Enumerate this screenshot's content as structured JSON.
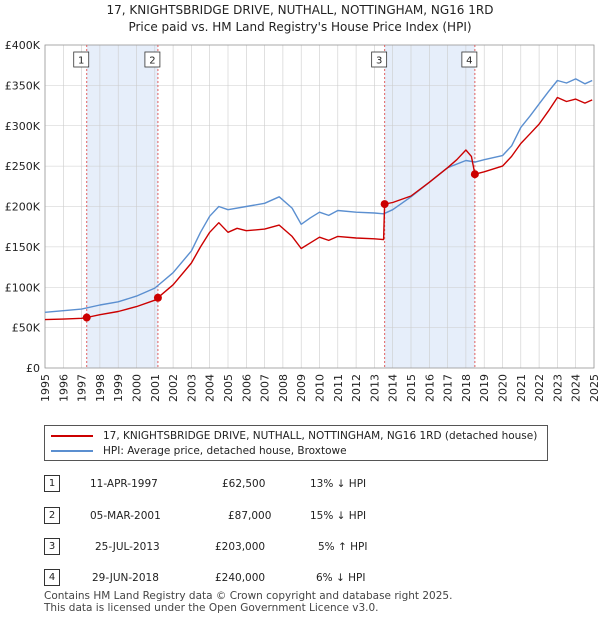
{
  "title": "17, KNIGHTSBRIDGE DRIVE, NUTHALL, NOTTINGHAM, NG16 1RD",
  "subtitle": "Price paid vs. HM Land Registry's House Price Index (HPI)",
  "colors": {
    "property": "#cc0000",
    "hpi": "#5b8fd0",
    "shade": "#e6eefa",
    "vline": "#e06060",
    "grid": "#cccccc"
  },
  "chart_data": {
    "type": "line",
    "xlim": [
      1995,
      2025
    ],
    "ylim": [
      0,
      400000
    ],
    "x_ticks": [
      "1995",
      "1996",
      "1997",
      "1998",
      "1999",
      "2000",
      "2001",
      "2002",
      "2003",
      "2004",
      "2005",
      "2006",
      "2007",
      "2008",
      "2009",
      "2010",
      "2011",
      "2012",
      "2013",
      "2014",
      "2015",
      "2016",
      "2017",
      "2018",
      "2019",
      "2020",
      "2021",
      "2022",
      "2023",
      "2024",
      "2025"
    ],
    "y_ticks": [
      {
        "value": 0,
        "label": "£0"
      },
      {
        "value": 50000,
        "label": "£50K"
      },
      {
        "value": 100000,
        "label": "£100K"
      },
      {
        "value": 150000,
        "label": "£150K"
      },
      {
        "value": 200000,
        "label": "£200K"
      },
      {
        "value": 250000,
        "label": "£250K"
      },
      {
        "value": 300000,
        "label": "£300K"
      },
      {
        "value": 350000,
        "label": "£350K"
      },
      {
        "value": 400000,
        "label": "£400K"
      }
    ],
    "shaded_ranges": [
      [
        1997.28,
        2001.17
      ],
      [
        2013.56,
        2018.49
      ]
    ],
    "series": [
      {
        "name": "17, KNIGHTSBRIDGE DRIVE, NUTHALL, NOTTINGHAM, NG16 1RD (detached house)",
        "color": "#cc0000",
        "points": [
          [
            1995.0,
            60000
          ],
          [
            1996.0,
            60500
          ],
          [
            1997.0,
            61500
          ],
          [
            1997.28,
            62500
          ],
          [
            1998.0,
            66000
          ],
          [
            1999.0,
            70000
          ],
          [
            2000.0,
            76000
          ],
          [
            2001.0,
            84000
          ],
          [
            2001.17,
            87000
          ],
          [
            2002.0,
            103000
          ],
          [
            2003.0,
            130000
          ],
          [
            2003.5,
            150000
          ],
          [
            2004.0,
            168000
          ],
          [
            2004.5,
            180000
          ],
          [
            2005.0,
            168000
          ],
          [
            2005.5,
            173000
          ],
          [
            2006.0,
            170000
          ],
          [
            2007.0,
            172000
          ],
          [
            2007.8,
            177000
          ],
          [
            2008.5,
            163000
          ],
          [
            2009.0,
            148000
          ],
          [
            2009.5,
            155000
          ],
          [
            2010.0,
            162000
          ],
          [
            2010.5,
            158000
          ],
          [
            2011.0,
            163000
          ],
          [
            2012.0,
            161000
          ],
          [
            2013.0,
            160000
          ],
          [
            2013.5,
            159000
          ],
          [
            2013.56,
            203000
          ],
          [
            2014.0,
            205000
          ],
          [
            2015.0,
            213000
          ],
          [
            2016.0,
            230000
          ],
          [
            2017.0,
            248000
          ],
          [
            2017.5,
            258000
          ],
          [
            2018.0,
            270000
          ],
          [
            2018.3,
            262000
          ],
          [
            2018.49,
            240000
          ],
          [
            2019.0,
            243000
          ],
          [
            2020.0,
            250000
          ],
          [
            2020.5,
            262000
          ],
          [
            2021.0,
            278000
          ],
          [
            2021.5,
            290000
          ],
          [
            2022.0,
            302000
          ],
          [
            2022.5,
            318000
          ],
          [
            2023.0,
            335000
          ],
          [
            2023.5,
            330000
          ],
          [
            2024.0,
            333000
          ],
          [
            2024.5,
            328000
          ],
          [
            2024.9,
            332000
          ]
        ]
      },
      {
        "name": "HPI: Average price, detached house, Broxtowe",
        "color": "#5b8fd0",
        "points": [
          [
            1995.0,
            69000
          ],
          [
            1996.0,
            71000
          ],
          [
            1997.0,
            73000
          ],
          [
            1998.0,
            78000
          ],
          [
            1999.0,
            82000
          ],
          [
            2000.0,
            89000
          ],
          [
            2001.0,
            99000
          ],
          [
            2002.0,
            118000
          ],
          [
            2003.0,
            145000
          ],
          [
            2003.5,
            168000
          ],
          [
            2004.0,
            188000
          ],
          [
            2004.5,
            200000
          ],
          [
            2005.0,
            196000
          ],
          [
            2006.0,
            200000
          ],
          [
            2007.0,
            204000
          ],
          [
            2007.8,
            212000
          ],
          [
            2008.5,
            198000
          ],
          [
            2009.0,
            178000
          ],
          [
            2009.5,
            186000
          ],
          [
            2010.0,
            193000
          ],
          [
            2010.5,
            189000
          ],
          [
            2011.0,
            195000
          ],
          [
            2012.0,
            193000
          ],
          [
            2013.0,
            192000
          ],
          [
            2013.5,
            191000
          ],
          [
            2014.0,
            196000
          ],
          [
            2015.0,
            212000
          ],
          [
            2016.0,
            230000
          ],
          [
            2017.0,
            248000
          ],
          [
            2018.0,
            257000
          ],
          [
            2018.5,
            255000
          ],
          [
            2019.0,
            258000
          ],
          [
            2020.0,
            263000
          ],
          [
            2020.5,
            275000
          ],
          [
            2021.0,
            298000
          ],
          [
            2021.5,
            312000
          ],
          [
            2022.0,
            327000
          ],
          [
            2022.5,
            342000
          ],
          [
            2023.0,
            356000
          ],
          [
            2023.5,
            353000
          ],
          [
            2024.0,
            358000
          ],
          [
            2024.5,
            352000
          ],
          [
            2024.9,
            356000
          ]
        ]
      }
    ],
    "sale_points": [
      {
        "label": "1",
        "x": 1997.28,
        "y": 62500
      },
      {
        "label": "2",
        "x": 2001.17,
        "y": 87000
      },
      {
        "label": "3",
        "x": 2013.56,
        "y": 203000
      },
      {
        "label": "4",
        "x": 2018.49,
        "y": 240000
      }
    ]
  },
  "legend": {
    "property": "17, KNIGHTSBRIDGE DRIVE, NUTHALL, NOTTINGHAM, NG16 1RD (detached house)",
    "hpi": "HPI: Average price, detached house, Broxtowe"
  },
  "sales": [
    {
      "num": "1",
      "date": "11-APR-1997",
      "price": "£62,500",
      "hpi": "13% ↓ HPI"
    },
    {
      "num": "2",
      "date": "05-MAR-2001",
      "price": "£87,000",
      "hpi": "15% ↓ HPI"
    },
    {
      "num": "3",
      "date": "25-JUL-2013",
      "price": "£203,000",
      "hpi": "5% ↑ HPI"
    },
    {
      "num": "4",
      "date": "29-JUN-2018",
      "price": "£240,000",
      "hpi": "6% ↓ HPI"
    }
  ],
  "footer": {
    "line1": "Contains HM Land Registry data © Crown copyright and database right 2025.",
    "line2": "This data is licensed under the Open Government Licence v3.0."
  }
}
